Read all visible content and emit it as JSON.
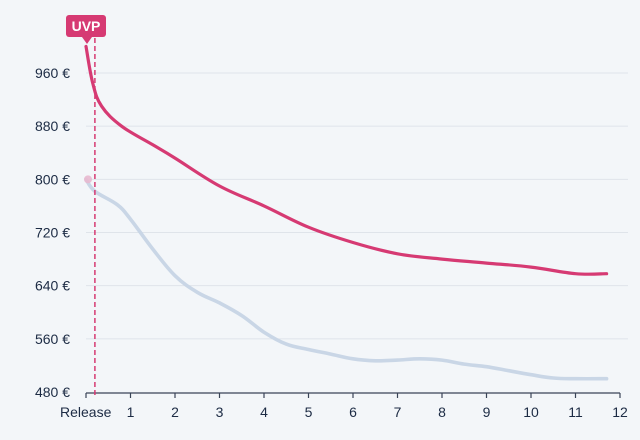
{
  "chart_data": {
    "type": "line",
    "x_tick_labels": [
      "Release",
      "1",
      "2",
      "3",
      "4",
      "5",
      "6",
      "7",
      "8",
      "9",
      "10",
      "11",
      "12"
    ],
    "x_ticks": [
      0,
      1,
      2,
      3,
      4,
      5,
      6,
      7,
      8,
      9,
      10,
      11,
      12
    ],
    "xlim": [
      0,
      12
    ],
    "y_ticks": [
      480,
      560,
      640,
      720,
      800,
      880,
      960
    ],
    "y_tick_labels": [
      "480 €",
      "560 €",
      "640 €",
      "720 €",
      "800 €",
      "880 €",
      "960 €"
    ],
    "ylim": [
      480,
      960
    ],
    "grid": "horizontal",
    "annotation": {
      "label": "UVP",
      "x": 0.2,
      "color": "#d63a73"
    },
    "series": [
      {
        "color": "#d63a73",
        "x": [
          0,
          0.15,
          0.35,
          0.8,
          1.5,
          2,
          3,
          4,
          5,
          6,
          7,
          8,
          9,
          10,
          11,
          11.7
        ],
        "y": [
          1000,
          945,
          910,
          880,
          852,
          832,
          790,
          760,
          728,
          705,
          688,
          680,
          674,
          668,
          658,
          658
        ]
      },
      {
        "color": "#c9d6e6",
        "x": [
          0,
          0.2,
          0.7,
          1,
          1.5,
          2,
          2.5,
          3,
          3.5,
          4,
          4.5,
          5,
          5.5,
          6,
          6.5,
          7,
          7.5,
          8,
          8.5,
          9,
          9.5,
          10,
          10.5,
          11,
          11.7
        ],
        "y": [
          800,
          782,
          762,
          740,
          695,
          655,
          630,
          614,
          595,
          570,
          552,
          544,
          537,
          530,
          527,
          528,
          530,
          528,
          522,
          518,
          512,
          506,
          501,
          500,
          500
        ]
      }
    ]
  }
}
